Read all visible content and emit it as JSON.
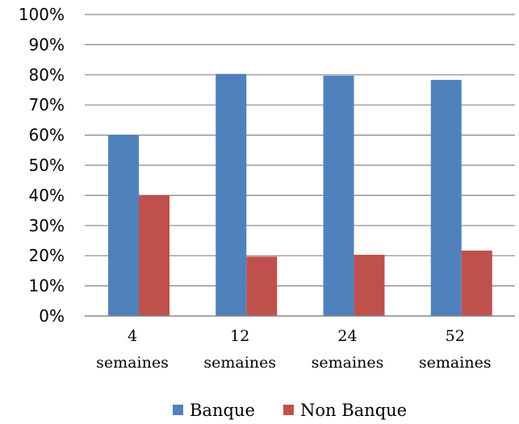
{
  "chart_data": {
    "type": "bar",
    "title": "",
    "xlabel": "",
    "ylabel": "",
    "categories": [
      [
        "4",
        "semaines"
      ],
      [
        "12",
        "semaines"
      ],
      [
        "24",
        "semaines"
      ],
      [
        "52",
        "semaines"
      ]
    ],
    "series": [
      {
        "name": "Banque",
        "color": "#4F81BD",
        "values": [
          60,
          80.3,
          79.7,
          78.3
        ]
      },
      {
        "name": "Non Banque",
        "color": "#C0504D",
        "values": [
          40,
          19.7,
          20.3,
          21.7
        ]
      }
    ],
    "ylim": [
      0,
      100
    ],
    "yticks": [
      0,
      10,
      20,
      30,
      40,
      50,
      60,
      70,
      80,
      90,
      100
    ],
    "ytick_labels": [
      "0%",
      "10%",
      "20%",
      "30%",
      "40%",
      "50%",
      "60%",
      "70%",
      "80%",
      "90%",
      "100%"
    ],
    "grid": true,
    "legend": "bottom"
  }
}
